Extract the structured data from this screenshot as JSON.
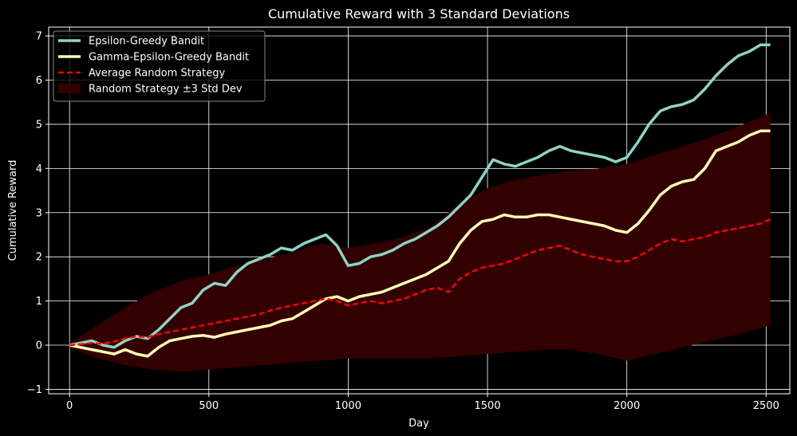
{
  "chart_data": {
    "type": "line",
    "title": "Cumulative Reward with 3 Standard Deviations",
    "xlabel": "Day",
    "ylabel": "Cumulative Reward",
    "xlim": [
      -75,
      2585
    ],
    "ylim": [
      -1.1,
      7.2
    ],
    "xticks": [
      0,
      500,
      1000,
      1500,
      2000,
      2500
    ],
    "yticks": [
      -1,
      0,
      1,
      2,
      3,
      4,
      5,
      6,
      7
    ],
    "grid": true,
    "legend_position": "top-left",
    "background": "#000000",
    "series": [
      {
        "name": "Epsilon-Greedy Bandit",
        "style": "solid",
        "color": "#8dd3c7",
        "x": [
          0,
          40,
          80,
          120,
          160,
          200,
          240,
          280,
          320,
          360,
          400,
          440,
          480,
          520,
          560,
          600,
          640,
          680,
          720,
          760,
          800,
          840,
          880,
          920,
          960,
          1000,
          1040,
          1080,
          1120,
          1160,
          1200,
          1240,
          1280,
          1320,
          1360,
          1400,
          1440,
          1480,
          1520,
          1560,
          1600,
          1640,
          1680,
          1720,
          1760,
          1800,
          1840,
          1880,
          1920,
          1960,
          2000,
          2040,
          2080,
          2120,
          2160,
          2200,
          2240,
          2280,
          2320,
          2360,
          2400,
          2440,
          2480,
          2515
        ],
        "y": [
          0.0,
          0.05,
          0.1,
          0.0,
          -0.05,
          0.1,
          0.2,
          0.15,
          0.35,
          0.6,
          0.85,
          0.95,
          1.25,
          1.4,
          1.35,
          1.65,
          1.85,
          1.95,
          2.05,
          2.2,
          2.15,
          2.3,
          2.4,
          2.5,
          2.25,
          1.8,
          1.85,
          2.0,
          2.05,
          2.15,
          2.3,
          2.4,
          2.55,
          2.7,
          2.9,
          3.15,
          3.4,
          3.8,
          4.2,
          4.1,
          4.05,
          4.15,
          4.25,
          4.4,
          4.5,
          4.4,
          4.35,
          4.3,
          4.25,
          4.15,
          4.25,
          4.6,
          5.0,
          5.3,
          5.4,
          5.45,
          5.55,
          5.8,
          6.1,
          6.35,
          6.55,
          6.65,
          6.8,
          6.8
        ]
      },
      {
        "name": "Gamma-Epsilon-Greedy Bandit",
        "style": "solid",
        "color": "#ffffb3",
        "x": [
          0,
          40,
          80,
          120,
          160,
          200,
          240,
          280,
          320,
          360,
          400,
          440,
          480,
          520,
          560,
          600,
          640,
          680,
          720,
          760,
          800,
          840,
          880,
          920,
          960,
          1000,
          1040,
          1080,
          1120,
          1160,
          1200,
          1240,
          1280,
          1320,
          1360,
          1400,
          1440,
          1480,
          1520,
          1560,
          1600,
          1640,
          1680,
          1720,
          1760,
          1800,
          1840,
          1880,
          1920,
          1960,
          2000,
          2040,
          2080,
          2120,
          2160,
          2200,
          2240,
          2280,
          2320,
          2360,
          2400,
          2440,
          2480,
          2515
        ],
        "y": [
          0.0,
          -0.05,
          -0.1,
          -0.15,
          -0.2,
          -0.1,
          -0.2,
          -0.25,
          -0.05,
          0.1,
          0.15,
          0.2,
          0.22,
          0.18,
          0.25,
          0.3,
          0.35,
          0.4,
          0.45,
          0.55,
          0.6,
          0.75,
          0.9,
          1.05,
          1.1,
          1.0,
          1.1,
          1.15,
          1.2,
          1.3,
          1.4,
          1.5,
          1.6,
          1.75,
          1.9,
          2.3,
          2.6,
          2.8,
          2.85,
          2.95,
          2.9,
          2.9,
          2.95,
          2.95,
          2.9,
          2.85,
          2.8,
          2.75,
          2.7,
          2.6,
          2.55,
          2.75,
          3.05,
          3.4,
          3.6,
          3.7,
          3.75,
          4.0,
          4.4,
          4.5,
          4.6,
          4.75,
          4.85,
          4.85
        ]
      },
      {
        "name": "Average Random Strategy",
        "style": "dashed",
        "color": "#ff0000",
        "x": [
          0,
          40,
          80,
          120,
          160,
          200,
          240,
          280,
          320,
          360,
          400,
          440,
          480,
          520,
          560,
          600,
          640,
          680,
          720,
          760,
          800,
          840,
          880,
          920,
          960,
          1000,
          1040,
          1080,
          1120,
          1160,
          1200,
          1240,
          1280,
          1320,
          1360,
          1400,
          1440,
          1480,
          1520,
          1560,
          1600,
          1640,
          1680,
          1720,
          1760,
          1800,
          1840,
          1880,
          1920,
          1960,
          2000,
          2040,
          2080,
          2120,
          2160,
          2200,
          2240,
          2280,
          2320,
          2360,
          2400,
          2440,
          2480,
          2515
        ],
        "y": [
          0.0,
          0.02,
          0.05,
          0.03,
          0.08,
          0.15,
          0.2,
          0.18,
          0.25,
          0.3,
          0.35,
          0.4,
          0.45,
          0.5,
          0.55,
          0.6,
          0.65,
          0.7,
          0.78,
          0.85,
          0.9,
          0.95,
          1.0,
          1.05,
          1.0,
          0.9,
          0.95,
          1.0,
          0.95,
          1.0,
          1.05,
          1.15,
          1.25,
          1.3,
          1.2,
          1.5,
          1.65,
          1.75,
          1.8,
          1.85,
          1.95,
          2.05,
          2.15,
          2.2,
          2.25,
          2.15,
          2.05,
          2.0,
          1.95,
          1.9,
          1.9,
          2.0,
          2.15,
          2.3,
          2.4,
          2.35,
          2.4,
          2.45,
          2.55,
          2.6,
          2.65,
          2.7,
          2.75,
          2.85
        ]
      }
    ],
    "band": {
      "name": "Random Strategy ±3 Std Dev",
      "color": "#330000",
      "x": [
        0,
        100,
        200,
        300,
        400,
        500,
        600,
        700,
        800,
        900,
        1000,
        1100,
        1200,
        1300,
        1400,
        1500,
        1600,
        1700,
        1800,
        1900,
        2000,
        2100,
        2200,
        2300,
        2400,
        2515
      ],
      "lower": [
        -0.05,
        -0.3,
        -0.45,
        -0.55,
        -0.6,
        -0.55,
        -0.5,
        -0.45,
        -0.4,
        -0.35,
        -0.3,
        -0.3,
        -0.3,
        -0.3,
        -0.25,
        -0.2,
        -0.15,
        -0.1,
        -0.1,
        -0.2,
        -0.35,
        -0.2,
        -0.05,
        0.1,
        0.25,
        0.45
      ],
      "upper": [
        0.05,
        0.45,
        0.85,
        1.2,
        1.45,
        1.6,
        1.8,
        1.95,
        2.1,
        2.3,
        2.2,
        2.3,
        2.45,
        2.7,
        3.2,
        3.55,
        3.75,
        3.85,
        3.95,
        4.0,
        4.1,
        4.3,
        4.5,
        4.7,
        4.95,
        5.25
      ]
    }
  }
}
